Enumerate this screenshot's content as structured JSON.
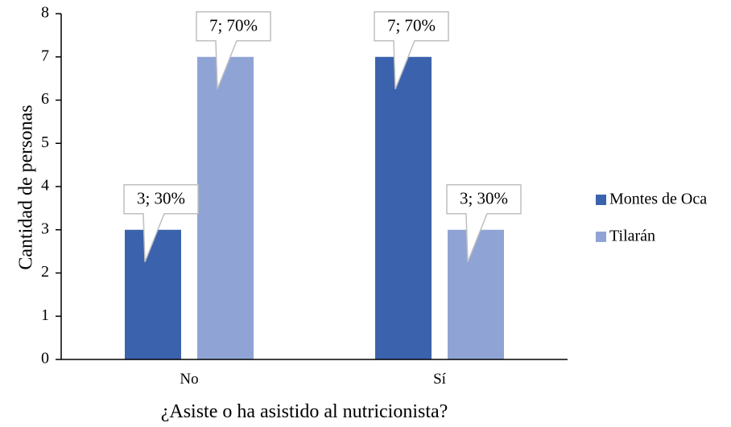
{
  "chart_data": {
    "type": "bar",
    "categories": [
      "No",
      "Sí"
    ],
    "series": [
      {
        "name": "Montes de Oca",
        "values": [
          3,
          7
        ],
        "labels": [
          "3; 30%",
          "7; 70%"
        ]
      },
      {
        "name": "Tilarán",
        "values": [
          7,
          3
        ],
        "labels": [
          "7; 70%",
          "3; 30%"
        ]
      }
    ],
    "xlabel": "¿Asiste o ha asistido al nutricionista?",
    "ylabel": "Cantidad de personas",
    "ylim": [
      0,
      8
    ],
    "yticks": [
      "0",
      "1",
      "2",
      "3",
      "4",
      "5",
      "6",
      "7",
      "8"
    ],
    "grid": false,
    "legend_position": "right"
  },
  "colors": {
    "Montes de Oca": "#3b62ad",
    "Tilarán": "#8fa4d5",
    "axis": "#000000",
    "callout_border": "#bfbfbf"
  }
}
